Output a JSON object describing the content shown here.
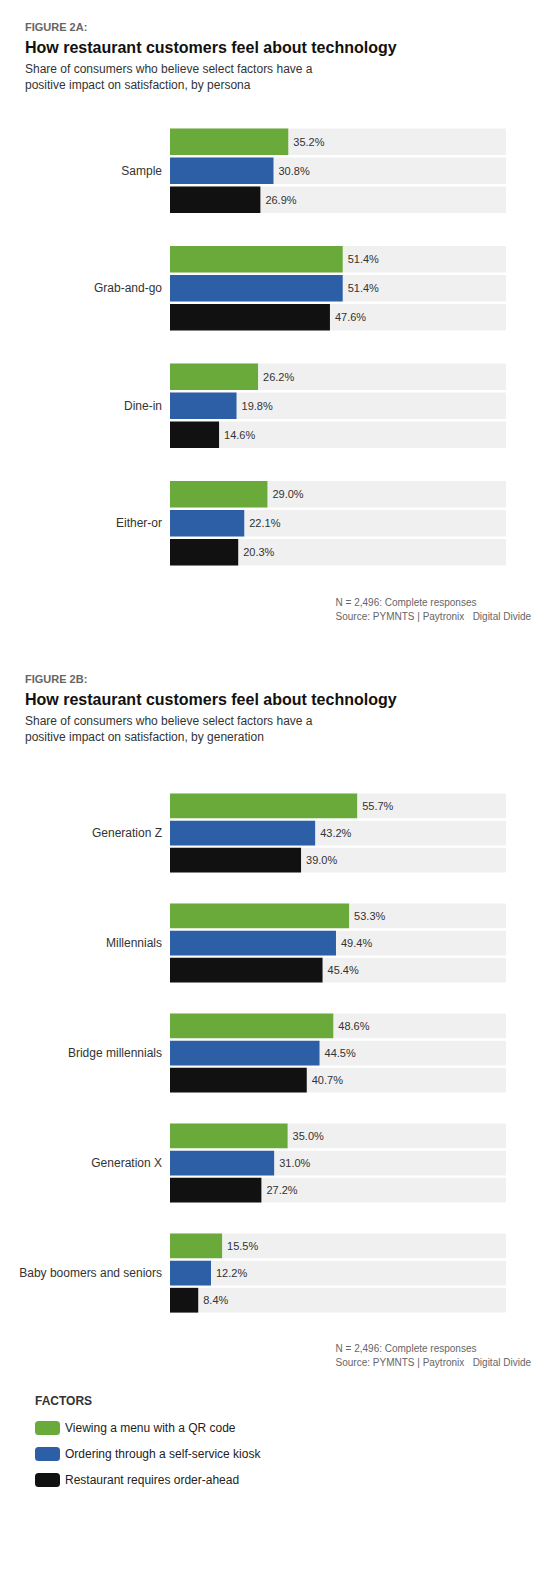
{
  "chart_data": [
    {
      "type": "bar",
      "orientation": "horizontal",
      "label": "FIGURE 2A:",
      "title": "How restaurant customers feel about technology",
      "subtitle": "Share of consumers who believe select factors have a\npositive impact on satisfaction, by persona",
      "note": "N = 2,496: Complete responses\nSource: PYMNTS | Paytronix   Digital Divide",
      "categories": [
        "Sample",
        "Grab-and-go",
        "Dine-in",
        "Either-or"
      ],
      "series": [
        {
          "name": "Viewing a menu with a QR code",
          "color": "#6aaa3a",
          "values": [
            35.2,
            51.4,
            26.2,
            29.0
          ],
          "value_labels": [
            "35.2%",
            "51.4%",
            "26.2%",
            "29.0%"
          ]
        },
        {
          "name": "Ordering through a self-service kiosk",
          "color": "#2d5fa6",
          "values": [
            30.8,
            51.4,
            19.8,
            22.1
          ],
          "value_labels": [
            "30.8%",
            "51.4%",
            "19.8%",
            "22.1%"
          ]
        },
        {
          "name": "Restaurant requires order-ahead",
          "color": "#111111",
          "values": [
            26.9,
            47.6,
            14.6,
            20.3
          ],
          "value_labels": [
            "26.9%",
            "47.6%",
            "14.6%",
            "20.3%"
          ]
        }
      ],
      "xlim": [
        0,
        100
      ],
      "grid": false,
      "data_labels": true,
      "tick_labels": "y"
    },
    {
      "type": "bar",
      "orientation": "horizontal",
      "label": "FIGURE 2B:",
      "title": "How restaurant customers feel about technology",
      "subtitle": "Share of consumers who believe select factors have a\npositive impact on satisfaction, by generation",
      "note": "N = 2,496: Complete responses\nSource: PYMNTS | Paytronix   Digital Divide",
      "categories": [
        "Generation Z",
        "Millennials",
        "Bridge millennials",
        "Generation X",
        "Baby boomers and seniors"
      ],
      "series": [
        {
          "name": "Viewing a menu with a QR code",
          "color": "#6aaa3a",
          "values": [
            55.7,
            53.3,
            48.6,
            35.0,
            15.5
          ],
          "value_labels": [
            "55.7%",
            "53.3%",
            "48.6%",
            "35.0%",
            "15.5%"
          ]
        },
        {
          "name": "Ordering through a self-service kiosk",
          "color": "#2d5fa6",
          "values": [
            43.2,
            49.4,
            44.5,
            31.0,
            12.2
          ],
          "value_labels": [
            "43.2%",
            "49.4%",
            "44.5%",
            "31.0%",
            "12.2%"
          ]
        },
        {
          "name": "Restaurant requires order-ahead",
          "color": "#111111",
          "values": [
            39.0,
            45.4,
            40.7,
            27.2,
            8.4
          ],
          "value_labels": [
            "39.0%",
            "45.4%",
            "40.7%",
            "27.2%",
            "8.4%"
          ]
        }
      ],
      "xlim": [
        0,
        100
      ],
      "grid": false,
      "data_labels": true,
      "tick_labels": "y",
      "legend": "bottom",
      "legend_title": "FACTORS"
    }
  ]
}
